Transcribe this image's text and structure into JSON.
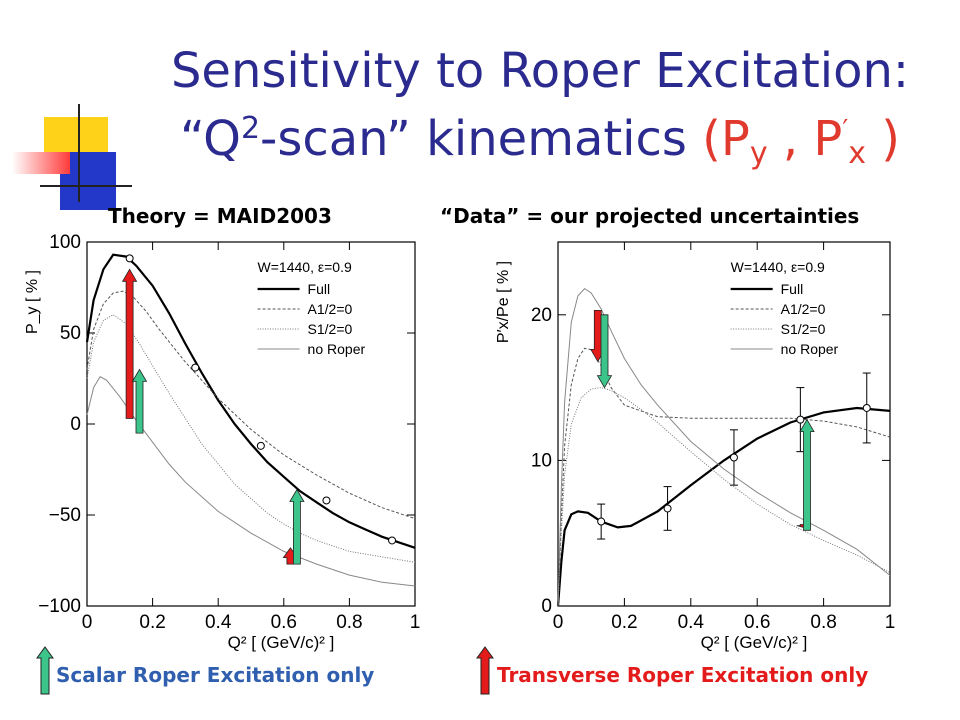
{
  "title": {
    "line1": "Sensitivity to Roper Excitation:",
    "line2_a": "“Q",
    "line2_sup": "2",
    "line2_b": "-scan” kinematics ",
    "paren_open": "(P",
    "py_sub": "y",
    "comma": " , P",
    "prime": "′",
    "px_sub": "x",
    "paren_close": " )"
  },
  "headers": {
    "left": "Theory = MAID2003",
    "right": "“Data” = our projected uncertainties"
  },
  "legend": {
    "scalar": "Scalar Roper Excitation only",
    "transverse": "Transverse Roper Excitation only",
    "scalar_color": "#3cc48a",
    "transverse_color": "#e41b1b"
  },
  "colors": {
    "title": "#2b2b8f",
    "title_accent": "#e03a2e",
    "deco_yellow": "#ffd21a",
    "deco_blue": "#2338c9",
    "deco_red": "#ff3b3b"
  },
  "chart_data": [
    {
      "type": "line",
      "ylabel": "P_y [ % ]",
      "xlabel": "Q² [ (GeV/c)² ]",
      "xlim": [
        0,
        1
      ],
      "ylim": [
        -100,
        100
      ],
      "xticks": [
        "0",
        "0.2",
        "0.4",
        "0.6",
        "0.8",
        "1"
      ],
      "yticks": [
        "−100",
        "−50",
        "0",
        "50",
        "100"
      ],
      "inset": "W=1440, ε=0.9",
      "legend_labels": [
        "Full",
        "A1/2=0",
        "S1/2=0",
        "no Roper"
      ],
      "series": [
        {
          "name": "Full",
          "x": [
            0.0,
            0.02,
            0.05,
            0.08,
            0.12,
            0.15,
            0.2,
            0.25,
            0.3,
            0.35,
            0.4,
            0.45,
            0.5,
            0.55,
            0.6,
            0.65,
            0.7,
            0.75,
            0.8,
            0.85,
            0.9,
            0.95,
            1.0
          ],
          "y": [
            45,
            68,
            85,
            93,
            92,
            87,
            76,
            61,
            44,
            28,
            13,
            0,
            -11,
            -21,
            -29,
            -37,
            -43,
            -49,
            -54,
            -58,
            -62,
            -65,
            -68
          ]
        },
        {
          "name": "A1/2=0",
          "x": [
            0.0,
            0.02,
            0.05,
            0.08,
            0.11,
            0.14,
            0.18,
            0.22,
            0.3,
            0.4,
            0.5,
            0.6,
            0.7,
            0.8,
            0.9,
            1.0
          ],
          "y": [
            30,
            52,
            66,
            72,
            73,
            70,
            62,
            52,
            34,
            14,
            -3,
            -17,
            -28,
            -38,
            -46,
            -52
          ]
        },
        {
          "name": "S1/2=0",
          "x": [
            0.0,
            0.02,
            0.05,
            0.08,
            0.12,
            0.16,
            0.2,
            0.25,
            0.3,
            0.35,
            0.4,
            0.45,
            0.5,
            0.55,
            0.6,
            0.65,
            0.7,
            0.8,
            0.9,
            1.0
          ],
          "y": [
            25,
            45,
            57,
            60,
            55,
            44,
            32,
            17,
            3,
            -11,
            -22,
            -33,
            -41,
            -49,
            -55,
            -60,
            -64,
            -70,
            -73,
            -76
          ]
        },
        {
          "name": "no Roper",
          "x": [
            0.0,
            0.02,
            0.04,
            0.06,
            0.1,
            0.15,
            0.2,
            0.25,
            0.3,
            0.4,
            0.5,
            0.6,
            0.7,
            0.8,
            0.9,
            1.0
          ],
          "y": [
            5,
            20,
            26,
            24,
            15,
            2,
            -10,
            -22,
            -32,
            -48,
            -60,
            -70,
            -77,
            -83,
            -87,
            -89
          ]
        }
      ],
      "data_points": {
        "x": [
          0.13,
          0.33,
          0.53,
          0.73,
          0.93
        ],
        "y": [
          91,
          31,
          -12,
          -42,
          -64
        ]
      },
      "arrows": [
        {
          "kind": "transverse",
          "x": 0.13,
          "from": 3,
          "to": 85
        },
        {
          "kind": "scalar",
          "x": 0.16,
          "from": -5,
          "to": 30
        },
        {
          "kind": "transverse",
          "x": 0.62,
          "from": -77,
          "to": -68
        },
        {
          "kind": "scalar",
          "x": 0.64,
          "from": -77,
          "to": -36
        }
      ]
    },
    {
      "type": "line",
      "ylabel": "P′x/Pe [ % ]",
      "xlabel": "Q² [ (GeV/c)² ]",
      "xlim": [
        0,
        1
      ],
      "ylim": [
        0,
        25
      ],
      "xticks": [
        "0",
        "0.2",
        "0.4",
        "0.6",
        "0.8",
        "1"
      ],
      "yticks": [
        "0",
        "10",
        "20"
      ],
      "inset": "W=1440, ε=0.9",
      "legend_labels": [
        "Full",
        "A1/2=0",
        "S1/2=0",
        "no Roper"
      ],
      "series": [
        {
          "name": "Full",
          "x": [
            0.0,
            0.01,
            0.02,
            0.04,
            0.06,
            0.09,
            0.13,
            0.18,
            0.22,
            0.3,
            0.4,
            0.5,
            0.6,
            0.7,
            0.8,
            0.9,
            1.0
          ],
          "y": [
            0,
            3.0,
            5.2,
            6.3,
            6.5,
            6.4,
            5.8,
            5.4,
            5.5,
            6.5,
            8.3,
            10.0,
            11.5,
            12.6,
            13.3,
            13.6,
            13.4
          ]
        },
        {
          "name": "A1/2=0",
          "x": [
            0.0,
            0.01,
            0.02,
            0.04,
            0.06,
            0.08,
            0.1,
            0.13,
            0.16,
            0.2,
            0.3,
            0.4,
            0.5,
            0.6,
            0.7,
            0.8,
            0.9,
            1.0
          ],
          "y": [
            0,
            6,
            11,
            15.2,
            17.0,
            17.7,
            17.6,
            16.5,
            15.0,
            13.8,
            13.0,
            12.9,
            12.9,
            12.9,
            12.9,
            12.7,
            12.3,
            11.6
          ]
        },
        {
          "name": "S1/2=0",
          "x": [
            0.0,
            0.01,
            0.02,
            0.04,
            0.07,
            0.1,
            0.13,
            0.16,
            0.2,
            0.25,
            0.3,
            0.4,
            0.5,
            0.6,
            0.7,
            0.8,
            0.9,
            1.0
          ],
          "y": [
            0,
            5,
            9,
            12.5,
            14.3,
            14.9,
            15.0,
            14.8,
            14.3,
            13.5,
            12.6,
            10.6,
            8.7,
            7.0,
            5.6,
            4.5,
            3.5,
            2.3
          ]
        },
        {
          "name": "no Roper",
          "x": [
            0.0,
            0.01,
            0.02,
            0.04,
            0.06,
            0.08,
            0.1,
            0.13,
            0.16,
            0.2,
            0.25,
            0.3,
            0.4,
            0.5,
            0.6,
            0.7,
            0.8,
            0.9,
            1.0
          ],
          "y": [
            0,
            8,
            14,
            19.5,
            21.3,
            21.8,
            21.5,
            20.4,
            18.9,
            17.0,
            15.2,
            13.8,
            11.3,
            9.4,
            7.8,
            6.4,
            5.2,
            3.9,
            2.1
          ]
        }
      ],
      "data_points": {
        "x": [
          0.13,
          0.33,
          0.53,
          0.73,
          0.93
        ],
        "y": [
          5.8,
          6.7,
          10.2,
          12.8,
          13.6
        ],
        "err": [
          1.2,
          1.5,
          1.9,
          2.2,
          2.4
        ]
      },
      "arrows": [
        {
          "kind": "transverse",
          "x": 0.12,
          "from": 20.3,
          "to": 16.8
        },
        {
          "kind": "scalar",
          "x": 0.14,
          "from": 20.0,
          "to": 15.0
        },
        {
          "kind": "transverse",
          "x": 0.74,
          "from": 5.6,
          "to": 5.4
        },
        {
          "kind": "scalar",
          "x": 0.75,
          "from": 5.2,
          "to": 12.8
        }
      ]
    }
  ]
}
